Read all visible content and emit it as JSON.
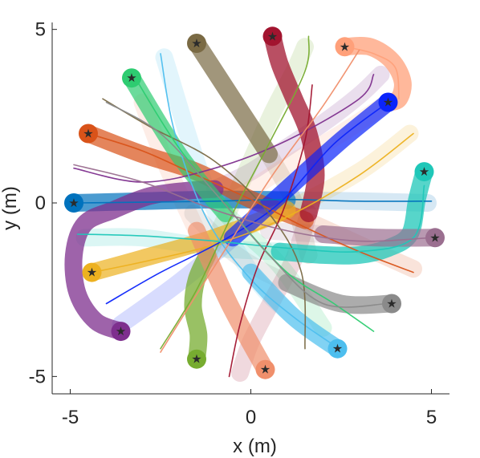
{
  "chart_data": {
    "type": "line",
    "title": "",
    "xlabel": "x (m)",
    "ylabel": "y (m)",
    "xlim": [
      -5.5,
      5.5
    ],
    "ylim": [
      -5.5,
      5.2
    ],
    "xticks": [
      -5,
      0,
      5
    ],
    "yticks": [
      -5,
      0,
      5
    ],
    "xtick_labels": [
      "-5",
      "0",
      "5"
    ],
    "ytick_labels": [
      "-5",
      "0",
      "5"
    ],
    "grid": false,
    "legend": "none",
    "marker": "★",
    "series": [
      {
        "color": "#0072bd",
        "start": [
          -4.9,
          0.0
        ],
        "ghost_x": [
          -4.9,
          -3,
          -1,
          1,
          3,
          4.9
        ],
        "ghost_y": [
          0,
          0.05,
          0.1,
          0.08,
          0.05,
          0.0
        ],
        "line_x": [
          -4.9,
          -3,
          -1,
          1,
          3,
          5
        ],
        "line_y": [
          0,
          0.02,
          0.05,
          0.1,
          0.05,
          0.05
        ]
      },
      {
        "color": "#d95319",
        "start": [
          -4.5,
          2.0
        ],
        "ghost_x": [
          -4.5,
          -3,
          -1.5,
          0,
          1.5,
          3,
          4.5
        ],
        "ghost_y": [
          2.0,
          1.4,
          0.9,
          0.1,
          -0.5,
          -1.2,
          -1.9
        ],
        "line_x": [
          -4.5,
          -3,
          -1.5,
          0,
          1.5,
          3,
          4.5
        ],
        "line_y": [
          2.0,
          1.5,
          0.8,
          0.1,
          -0.7,
          -1.4,
          -2.0
        ]
      },
      {
        "color": "#edb120",
        "start": [
          -4.4,
          -2.0
        ],
        "ghost_x": [
          -4.4,
          -3,
          -1,
          1,
          3,
          4.4
        ],
        "ghost_y": [
          -2.0,
          -1.6,
          -1.0,
          -0.2,
          0.9,
          2.0
        ],
        "line_x": [
          -4.4,
          -3,
          -1,
          1,
          3,
          4.5
        ],
        "line_y": [
          -2.0,
          -1.7,
          -1.2,
          -0.4,
          0.8,
          2.0
        ]
      },
      {
        "color": "#7e2f8e",
        "start": [
          -3.6,
          -3.7
        ],
        "arc_x": [
          -3.6,
          -4.3,
          -4.8,
          -4.9,
          -4.6,
          -3.8,
          -2.8,
          -1.8,
          -1.0
        ],
        "arc_y": [
          -3.7,
          -3.4,
          -2.6,
          -1.5,
          -0.6,
          -0.2,
          0.2,
          0.35,
          0.4
        ],
        "ghost_x": [
          -1.0,
          0,
          1,
          2,
          3,
          3.6
        ],
        "ghost_y": [
          0.4,
          0.9,
          1.6,
          2.3,
          3.1,
          3.7
        ],
        "line_x": [
          -4.9,
          -3,
          -1,
          1,
          3,
          3.4
        ],
        "line_y": [
          1.0,
          0.6,
          1.0,
          1.8,
          3.0,
          3.7
        ]
      },
      {
        "color": "#77ac30",
        "start": [
          -1.5,
          -4.5
        ],
        "arc_x": [
          -1.5,
          -1.45,
          -1.6,
          -1.5,
          -1.2
        ],
        "arc_y": [
          -4.5,
          -3.8,
          -3.0,
          -2.2,
          -1.5
        ],
        "ghost_x": [
          -1.2,
          -0.6,
          0.0,
          0.6,
          1.2,
          1.5
        ],
        "ghost_y": [
          -1.5,
          -0.2,
          1.2,
          2.6,
          3.8,
          4.5
        ],
        "line_x": [
          -2.5,
          -1.5,
          -0.5,
          0.5,
          1.5,
          1.6
        ],
        "line_y": [
          -4.2,
          -2.5,
          -0.3,
          1.7,
          3.8,
          4.8
        ]
      },
      {
        "color": "#4dbeee",
        "start": [
          2.4,
          -4.2
        ],
        "ghost_x": [
          2.4,
          1.2,
          0,
          -1.2,
          -2.4
        ],
        "ghost_y": [
          -4.2,
          -3.3,
          -2.0,
          0.3,
          4.2
        ],
        "line_x": [
          2.3,
          1.2,
          0,
          -1.2,
          -2.1,
          -2.5
        ],
        "line_y": [
          -4.1,
          -3.3,
          -2.2,
          -0.5,
          2.0,
          4.3
        ]
      },
      {
        "color": "#a2142f",
        "start": [
          0.6,
          4.8
        ],
        "arc_x": [
          0.6,
          0.8,
          1.2,
          1.6,
          1.8,
          1.6
        ],
        "arc_y": [
          4.8,
          4.0,
          3.0,
          2.0,
          0.8,
          -0.3
        ],
        "ghost_x": [
          1.6,
          1.2,
          0.6,
          0.0,
          -0.3
        ],
        "ghost_y": [
          -0.3,
          -1.6,
          -2.8,
          -4.0,
          -4.9
        ],
        "line_x": [
          -0.6,
          -0.3,
          0.2,
          0.9,
          1.5,
          1.7
        ],
        "line_y": [
          -5.0,
          -3.5,
          -1.8,
          -0.2,
          1.8,
          3.4
        ]
      },
      {
        "color": "#0b24fb",
        "start": [
          3.8,
          2.9
        ],
        "ghost_x": [
          3.8,
          2.5,
          1.0,
          -0.5,
          -2.0,
          -3.6
        ],
        "ghost_y": [
          2.9,
          1.8,
          0.4,
          -1.0,
          -2.3,
          -3.5
        ],
        "line_x": [
          3.8,
          2.3,
          0.8,
          -0.8,
          -2.5,
          -4.0
        ],
        "line_y": [
          2.9,
          1.7,
          0.0,
          -1.1,
          -2.0,
          -2.9
        ]
      },
      {
        "color": "#7a6a44",
        "start": [
          -1.5,
          4.6
        ],
        "ghost_x": [
          -1.5,
          -0.5,
          0.5,
          1.2,
          1.6
        ],
        "ghost_y": [
          4.6,
          3.0,
          1.4,
          0,
          -1.5
        ],
        "line_x": [
          -4.1,
          -2.8,
          -1.0,
          0.5,
          1.4,
          1.5
        ],
        "line_y": [
          3.0,
          2.2,
          1.2,
          -0.3,
          -2.0,
          -4.2
        ]
      },
      {
        "color": "#2ecc71",
        "start": [
          -3.3,
          3.6
        ],
        "ghost_x": [
          -3.3,
          -2.0,
          -0.7,
          0.8,
          2.0
        ],
        "ghost_y": [
          3.6,
          1.4,
          -0.3,
          -1.8,
          -3.6
        ],
        "line_x": [
          -3.2,
          -2.0,
          -0.5,
          1.0,
          2.3,
          3.4
        ],
        "line_y": [
          3.6,
          1.6,
          -0.3,
          -2.0,
          -2.9,
          -3.7
        ]
      },
      {
        "color": "#ffa07a",
        "start": [
          2.6,
          4.5
        ],
        "arc_x": [
          2.6,
          3.3,
          3.9,
          4.2,
          4.1,
          3.8
        ],
        "arc_y": [
          4.5,
          4.5,
          4.1,
          3.5,
          3.0,
          2.9
        ],
        "ghost_x": [
          3.8,
          2.5,
          1.2,
          0.0
        ],
        "ghost_y": [
          2.9,
          2.0,
          1.2,
          0.4
        ],
        "line_x": [
          2.6,
          3.4,
          4.0,
          4.1
        ],
        "line_y": [
          4.5,
          4.3,
          3.9,
          3.0
        ]
      },
      {
        "color": "#f08f6b",
        "start": [
          0.4,
          -4.8
        ],
        "ghost_x": [
          0.4,
          -0.6,
          -1.5,
          -2.3,
          -3.0
        ],
        "ghost_y": [
          -4.8,
          -2.9,
          -0.8,
          1.0,
          2.9
        ],
        "line_x": [
          -2.5,
          -1.6,
          -0.5,
          0.6,
          2.0,
          3.0
        ],
        "line_y": [
          -4.3,
          -2.8,
          -1.0,
          0.8,
          2.8,
          4.4
        ]
      },
      {
        "color": "#1fc7b8",
        "start": [
          4.8,
          0.9
        ],
        "arc_x": [
          4.8,
          4.6,
          4.4,
          3.8,
          3.0,
          2.0,
          0.8
        ],
        "arc_y": [
          0.9,
          0.1,
          -0.9,
          -1.3,
          -1.5,
          -1.5,
          -1.4
        ],
        "ghost_x": [
          0.8,
          -1,
          -3,
          -4.6
        ],
        "ghost_y": [
          -1.4,
          -1.3,
          -1.0,
          -1.0
        ],
        "line_x": [
          -4.8,
          -3,
          -1,
          1,
          3,
          4.5,
          4.8
        ],
        "line_y": [
          -0.9,
          -0.95,
          -1.1,
          -1.3,
          -1.4,
          -1.0,
          0.5
        ]
      },
      {
        "color": "#8a8a8a",
        "start": [
          3.9,
          -2.9
        ],
        "ghost_x": [
          3.9,
          2.5,
          1.0,
          -0.4,
          -1.6
        ],
        "ghost_y": [
          -2.9,
          -2.9,
          -2.3,
          -1.5,
          -0.3
        ],
        "line_x": [
          -4.0,
          -2.5,
          -1.0,
          0.5,
          2.0,
          3.8
        ],
        "line_y": [
          2.9,
          2.0,
          0.3,
          -1.5,
          -2.9,
          -2.9
        ]
      },
      {
        "color": "#9b6f90",
        "start": [
          5.1,
          -1.0
        ],
        "ghost_x": [
          5.1,
          3.5,
          2.0,
          0.5
        ],
        "ghost_y": [
          -1.0,
          -1.0,
          -0.9,
          -0.8
        ],
        "line_x": [
          -4.9,
          -3,
          -1,
          1,
          3,
          5
        ],
        "line_y": [
          1.1,
          0.6,
          -0.2,
          -0.8,
          -1.1,
          -1.0
        ]
      }
    ]
  }
}
